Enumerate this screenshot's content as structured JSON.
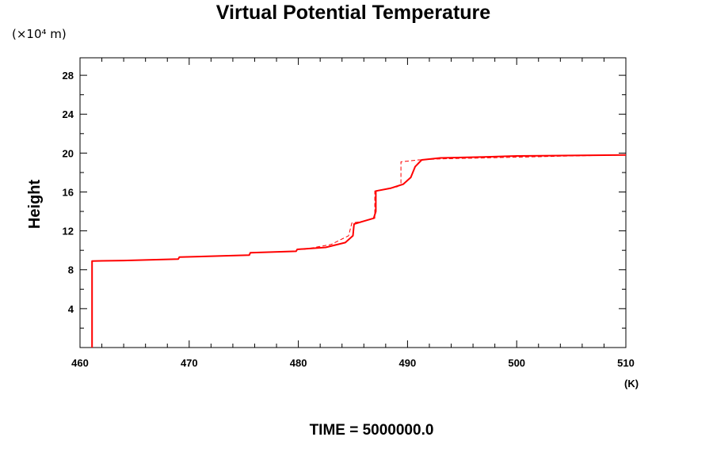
{
  "chart_data": {
    "type": "line",
    "title": "Virtual Potential Temperature",
    "ylabel": "Height",
    "y_unit": "(×10⁴ m)",
    "x_unit": "(K)",
    "xlim": [
      460,
      510
    ],
    "ylim": [
      0,
      29.8
    ],
    "x_ticks": [
      "460",
      "470",
      "480",
      "490",
      "500",
      "510"
    ],
    "y_ticks": [
      "4",
      "8",
      "12",
      "16",
      "20",
      "24",
      "28"
    ],
    "grid": false,
    "series": [
      {
        "style": "solid",
        "color": "#ff0000",
        "points": [
          [
            461.1,
            0.0
          ],
          [
            461.1,
            8.9
          ],
          [
            464,
            8.95
          ],
          [
            469,
            9.1
          ],
          [
            469.1,
            9.3
          ],
          [
            475.5,
            9.5
          ],
          [
            475.6,
            9.75
          ],
          [
            479.8,
            9.9
          ],
          [
            479.9,
            10.1
          ],
          [
            482.5,
            10.3
          ],
          [
            484.3,
            10.8
          ],
          [
            485.0,
            11.5
          ],
          [
            485.1,
            12.7
          ],
          [
            486.0,
            13.0
          ],
          [
            486.9,
            13.3
          ],
          [
            487.1,
            14.0
          ],
          [
            487.1,
            16.1
          ],
          [
            488.5,
            16.4
          ],
          [
            489.6,
            16.8
          ],
          [
            490.3,
            17.5
          ],
          [
            490.7,
            18.6
          ],
          [
            491.3,
            19.3
          ],
          [
            493.0,
            19.5
          ],
          [
            497.0,
            19.6
          ],
          [
            500.0,
            19.7
          ],
          [
            510.0,
            19.8
          ]
        ]
      },
      {
        "style": "dashed",
        "color": "#ff0000",
        "points": [
          [
            480.5,
            10.1
          ],
          [
            483.0,
            10.6
          ],
          [
            484.6,
            11.5
          ],
          [
            484.9,
            12.8
          ],
          [
            486.0,
            13.0
          ],
          [
            487.0,
            13.3
          ],
          [
            487.0,
            16.1
          ],
          [
            489.0,
            16.5
          ],
          [
            489.4,
            16.8
          ],
          [
            489.4,
            19.1
          ],
          [
            491.0,
            19.3
          ],
          [
            493.0,
            19.4
          ],
          [
            497.0,
            19.5
          ],
          [
            505.0,
            19.7
          ],
          [
            510.0,
            19.8
          ]
        ]
      }
    ],
    "footer": "TIME = 5000000.0"
  }
}
